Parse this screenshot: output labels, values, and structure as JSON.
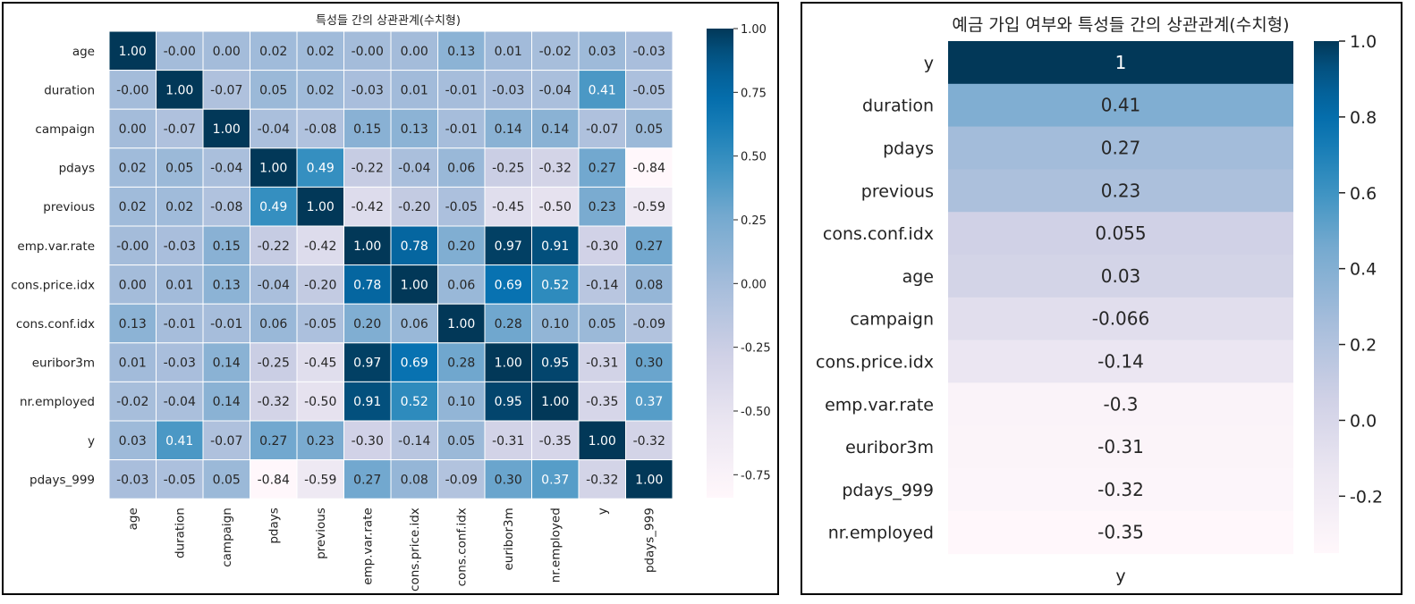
{
  "chart_data": [
    {
      "type": "heatmap",
      "title": "특성들 간의 상관관계(수치형)",
      "rows": [
        "age",
        "duration",
        "campaign",
        "pdays",
        "previous",
        "emp.var.rate",
        "cons.price.idx",
        "cons.conf.idx",
        "euribor3m",
        "nr.employed",
        "y",
        "pdays_999"
      ],
      "columns": [
        "age",
        "duration",
        "campaign",
        "pdays",
        "previous",
        "emp.var.rate",
        "cons.price.idx",
        "cons.conf.idx",
        "euribor3m",
        "nr.employed",
        "y",
        "pdays_999"
      ],
      "values": [
        [
          1.0,
          -0.0,
          0.0,
          0.02,
          0.02,
          -0.0,
          0.0,
          0.13,
          0.01,
          -0.02,
          0.03,
          -0.03
        ],
        [
          -0.0,
          1.0,
          -0.07,
          0.05,
          0.02,
          -0.03,
          0.01,
          -0.01,
          -0.03,
          -0.04,
          0.41,
          -0.05
        ],
        [
          0.0,
          -0.07,
          1.0,
          -0.04,
          -0.08,
          0.15,
          0.13,
          -0.01,
          0.14,
          0.14,
          -0.07,
          0.05
        ],
        [
          0.02,
          0.05,
          -0.04,
          1.0,
          0.49,
          -0.22,
          -0.04,
          0.06,
          -0.25,
          -0.32,
          0.27,
          -0.84
        ],
        [
          0.02,
          0.02,
          -0.08,
          0.49,
          1.0,
          -0.42,
          -0.2,
          -0.05,
          -0.45,
          -0.5,
          0.23,
          -0.59
        ],
        [
          -0.0,
          -0.03,
          0.15,
          -0.22,
          -0.42,
          1.0,
          0.78,
          0.2,
          0.97,
          0.91,
          -0.3,
          0.27
        ],
        [
          0.0,
          0.01,
          0.13,
          -0.04,
          -0.2,
          0.78,
          1.0,
          0.06,
          0.69,
          0.52,
          -0.14,
          0.08
        ],
        [
          0.13,
          -0.01,
          -0.01,
          0.06,
          -0.05,
          0.2,
          0.06,
          1.0,
          0.28,
          0.1,
          0.05,
          -0.09
        ],
        [
          0.01,
          -0.03,
          0.14,
          -0.25,
          -0.45,
          0.97,
          0.69,
          0.28,
          1.0,
          0.95,
          -0.31,
          0.3
        ],
        [
          -0.02,
          -0.04,
          0.14,
          -0.32,
          -0.5,
          0.91,
          0.52,
          0.1,
          0.95,
          1.0,
          -0.35,
          0.37
        ],
        [
          0.03,
          0.41,
          -0.07,
          0.27,
          0.23,
          -0.3,
          -0.14,
          0.05,
          -0.31,
          -0.35,
          1.0,
          -0.32
        ],
        [
          -0.03,
          -0.05,
          0.05,
          -0.84,
          -0.59,
          0.27,
          0.08,
          -0.09,
          0.3,
          0.37,
          -0.32,
          1.0
        ]
      ],
      "labels": [
        [
          "1.00",
          "-0.00",
          "0.00",
          "0.02",
          "0.02",
          "-0.00",
          "0.00",
          "0.13",
          "0.01",
          "-0.02",
          "0.03",
          "-0.03"
        ],
        [
          "-0.00",
          "1.00",
          "-0.07",
          "0.05",
          "0.02",
          "-0.03",
          "0.01",
          "-0.01",
          "-0.03",
          "-0.04",
          "0.41",
          "-0.05"
        ],
        [
          "0.00",
          "-0.07",
          "1.00",
          "-0.04",
          "-0.08",
          "0.15",
          "0.13",
          "-0.01",
          "0.14",
          "0.14",
          "-0.07",
          "0.05"
        ],
        [
          "0.02",
          "0.05",
          "-0.04",
          "1.00",
          "0.49",
          "-0.22",
          "-0.04",
          "0.06",
          "-0.25",
          "-0.32",
          "0.27",
          "-0.84"
        ],
        [
          "0.02",
          "0.02",
          "-0.08",
          "0.49",
          "1.00",
          "-0.42",
          "-0.20",
          "-0.05",
          "-0.45",
          "-0.50",
          "0.23",
          "-0.59"
        ],
        [
          "-0.00",
          "-0.03",
          "0.15",
          "-0.22",
          "-0.42",
          "1.00",
          "0.78",
          "0.20",
          "0.97",
          "0.91",
          "-0.30",
          "0.27"
        ],
        [
          "0.00",
          "0.01",
          "0.13",
          "-0.04",
          "-0.20",
          "0.78",
          "1.00",
          "0.06",
          "0.69",
          "0.52",
          "-0.14",
          "0.08"
        ],
        [
          "0.13",
          "-0.01",
          "-0.01",
          "0.06",
          "-0.05",
          "0.20",
          "0.06",
          "1.00",
          "0.28",
          "0.10",
          "0.05",
          "-0.09"
        ],
        [
          "0.01",
          "-0.03",
          "0.14",
          "-0.25",
          "-0.45",
          "0.97",
          "0.69",
          "0.28",
          "1.00",
          "0.95",
          "-0.31",
          "0.30"
        ],
        [
          "-0.02",
          "-0.04",
          "0.14",
          "-0.32",
          "-0.50",
          "0.91",
          "0.52",
          "0.10",
          "0.95",
          "1.00",
          "-0.35",
          "0.37"
        ],
        [
          "0.03",
          "0.41",
          "-0.07",
          "0.27",
          "0.23",
          "-0.30",
          "-0.14",
          "0.05",
          "-0.31",
          "-0.35",
          "1.00",
          "-0.32"
        ],
        [
          "-0.03",
          "-0.05",
          "0.05",
          "-0.84",
          "-0.59",
          "0.27",
          "0.08",
          "-0.09",
          "0.30",
          "0.37",
          "-0.32",
          "1.00"
        ]
      ],
      "colorbar": {
        "range": [
          -0.84,
          1.0
        ],
        "ticks": [
          1.0,
          0.75,
          0.5,
          0.25,
          0.0,
          -0.25,
          -0.5,
          -0.75
        ],
        "tick_labels": [
          "1.00",
          "0.75",
          "0.50",
          "0.25",
          "0.00",
          "-0.25",
          "-0.50",
          "-0.75"
        ]
      },
      "colormap": "PuBu",
      "grid_lines": true
    },
    {
      "type": "heatmap",
      "title": "예금 가입 여부와 특성들 간의 상관관계(수치형)",
      "rows": [
        "y",
        "duration",
        "pdays",
        "previous",
        "cons.conf.idx",
        "age",
        "campaign",
        "cons.price.idx",
        "emp.var.rate",
        "euribor3m",
        "pdays_999",
        "nr.employed"
      ],
      "columns": [
        "y"
      ],
      "values": [
        1.0,
        0.41,
        0.27,
        0.23,
        0.055,
        0.03,
        -0.066,
        -0.14,
        -0.3,
        -0.31,
        -0.32,
        -0.35
      ],
      "labels": [
        "1",
        "0.41",
        "0.27",
        "0.23",
        "0.055",
        "0.03",
        "-0.066",
        "-0.14",
        "-0.3",
        "-0.31",
        "-0.32",
        "-0.35"
      ],
      "xlabel": "y",
      "colorbar": {
        "range": [
          -0.35,
          1.0
        ],
        "ticks": [
          1.0,
          0.8,
          0.6,
          0.4,
          0.2,
          0.0,
          -0.2
        ],
        "tick_labels": [
          "1.0",
          "0.8",
          "0.6",
          "0.4",
          "0.2",
          "0.0",
          "-0.2"
        ]
      },
      "colormap": "PuBu",
      "grid_lines": false
    }
  ]
}
